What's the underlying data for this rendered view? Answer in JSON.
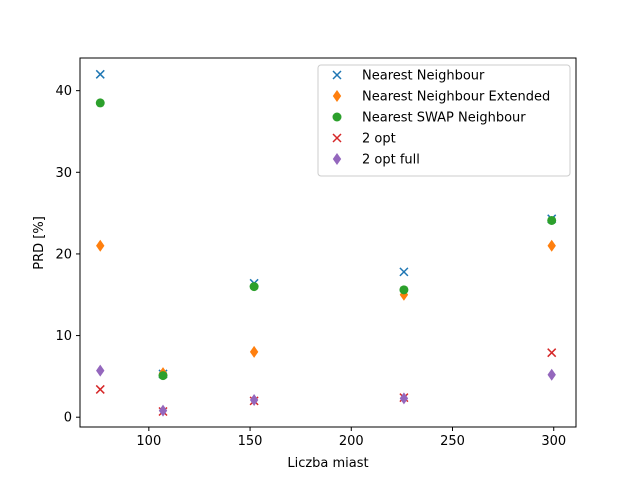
{
  "chart_data": {
    "type": "scatter",
    "title": "",
    "xlabel": "Liczba miast",
    "ylabel": "PRD [%]",
    "xlim": [
      66,
      311
    ],
    "ylim": [
      -1.2,
      44
    ],
    "x_ticks": [
      100,
      150,
      200,
      250,
      300
    ],
    "y_ticks": [
      0,
      10,
      20,
      30,
      40
    ],
    "grid": false,
    "legend_position": "top-right",
    "series": [
      {
        "name": "Nearest Neighbour",
        "marker": "x",
        "color": "#1f77b4",
        "points": [
          [
            76,
            42.0
          ],
          [
            107,
            5.3
          ],
          [
            152,
            16.4
          ],
          [
            226,
            17.8
          ],
          [
            299,
            24.3
          ]
        ]
      },
      {
        "name": "Nearest Neighbour Extended",
        "marker": "diamond",
        "color": "#ff7f0e",
        "points": [
          [
            76,
            21.0
          ],
          [
            107,
            5.4
          ],
          [
            152,
            8.0
          ],
          [
            226,
            15.0
          ],
          [
            299,
            21.0
          ]
        ]
      },
      {
        "name": "Nearest SWAP Neighbour",
        "marker": "circle",
        "color": "#2ca02c",
        "points": [
          [
            76,
            38.5
          ],
          [
            107,
            5.1
          ],
          [
            152,
            16.0
          ],
          [
            226,
            15.6
          ],
          [
            299,
            24.1
          ]
        ]
      },
      {
        "name": "2 opt",
        "marker": "x",
        "color": "#d62728",
        "points": [
          [
            76,
            3.4
          ],
          [
            107,
            0.7
          ],
          [
            152,
            2.0
          ],
          [
            226,
            2.4
          ],
          [
            299,
            7.9
          ]
        ]
      },
      {
        "name": "2 opt full",
        "marker": "diamond",
        "color": "#9467bd",
        "points": [
          [
            76,
            5.7
          ],
          [
            107,
            0.8
          ],
          [
            152,
            2.1
          ],
          [
            226,
            2.3
          ],
          [
            299,
            5.2
          ]
        ]
      }
    ]
  }
}
